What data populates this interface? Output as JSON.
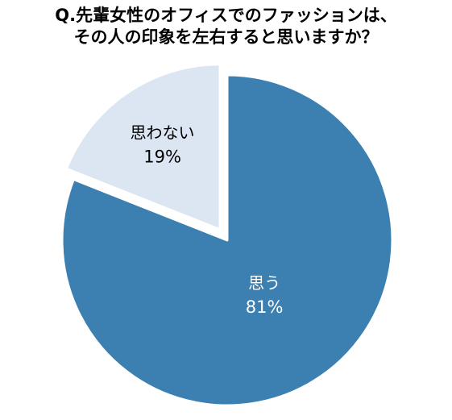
{
  "chart_data": {
    "type": "pie",
    "title_lines": [
      "Q.先輩女性のオフィスでのファッションは、",
      "その人の印象を左右すると思いますか？"
    ],
    "slices": [
      {
        "label": "思う",
        "value": 81,
        "value_label": "81%",
        "color": "#3C7FB1",
        "text_color": "#ffffff",
        "exploded": false
      },
      {
        "label": "思わない",
        "value": 19,
        "value_label": "19%",
        "color": "#DCE6F2",
        "text_color": "#000000",
        "exploded": true
      }
    ],
    "start_angle": "12 o'clock",
    "direction": "clockwise",
    "legend": "none"
  }
}
